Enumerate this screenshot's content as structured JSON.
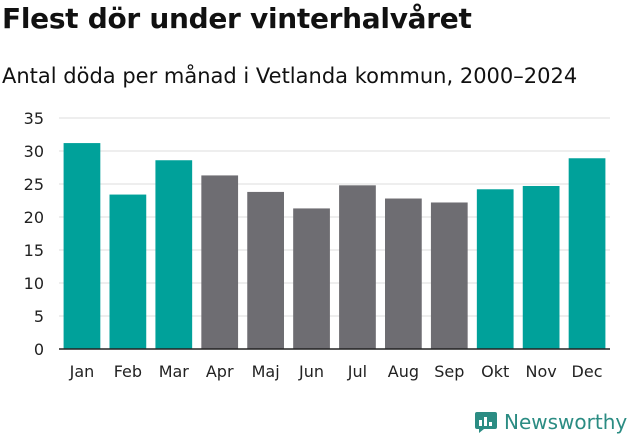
{
  "chart_data": {
    "type": "bar",
    "title": "Flest dör under vinterhalvåret",
    "subtitle": "Antal döda per månad i Vetlanda kommun, 2000–2024",
    "xlabel": "",
    "ylabel": "",
    "categories": [
      "Jan",
      "Feb",
      "Mar",
      "Apr",
      "Maj",
      "Jun",
      "Jul",
      "Aug",
      "Sep",
      "Okt",
      "Nov",
      "Dec"
    ],
    "values": [
      31.2,
      23.4,
      28.6,
      26.3,
      23.8,
      21.3,
      24.8,
      22.8,
      22.2,
      24.2,
      24.7,
      28.9
    ],
    "highlight": [
      true,
      true,
      true,
      false,
      false,
      false,
      false,
      false,
      false,
      true,
      true,
      true
    ],
    "ylim": [
      0,
      35
    ],
    "yticks": [
      0,
      5,
      10,
      15,
      20,
      25,
      30,
      35
    ],
    "grid": true,
    "legend": "none"
  },
  "colors": {
    "highlight": "#00a19a",
    "base": "#6e6d72",
    "grid": "#dcdcdc",
    "axis": "#222222"
  },
  "brand": {
    "name": "Newsworthy",
    "icon": "bar-chart-speech-icon"
  }
}
